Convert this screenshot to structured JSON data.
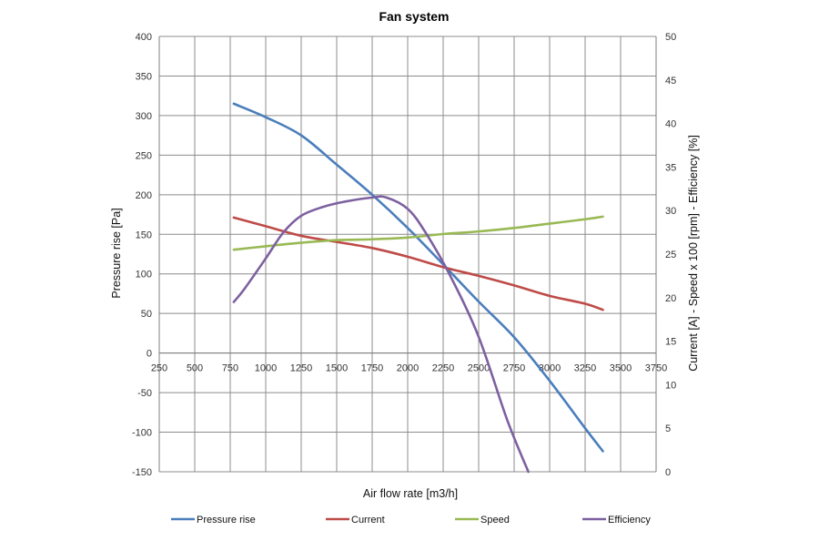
{
  "chart_data": {
    "type": "line",
    "title": "Fan system",
    "xlabel": "Air flow rate [m3/h]",
    "ylabel": "Pressure rise [Pa]",
    "y2label": "Current [A] - Speed x 100 [rpm] - Efficiency [%]",
    "xlim": [
      250,
      3750
    ],
    "ylim": [
      -150,
      400
    ],
    "y2lim": [
      0,
      50
    ],
    "xticks": [
      250,
      500,
      750,
      1000,
      1250,
      1500,
      1750,
      2000,
      2250,
      2500,
      2750,
      3000,
      3250,
      3500,
      3750
    ],
    "yticks": [
      -150,
      -100,
      -50,
      0,
      50,
      100,
      150,
      200,
      250,
      300,
      350,
      400
    ],
    "y2ticks": [
      0,
      5,
      10,
      15,
      20,
      25,
      30,
      35,
      40,
      45,
      50
    ],
    "grid": true,
    "legend_position": "bottom",
    "series": [
      {
        "name": "Pressure rise",
        "axis": "left",
        "color": "#4a7ebb",
        "x": [
          775,
          1000,
          1250,
          1500,
          1750,
          2000,
          2250,
          2500,
          2750,
          3000,
          3250,
          3375
        ],
        "y": [
          315,
          298,
          275,
          238,
          200,
          158,
          112,
          65,
          20,
          -35,
          -95,
          -124
        ]
      },
      {
        "name": "Current",
        "axis": "right",
        "color": "#be4b48",
        "x": [
          775,
          1000,
          1250,
          1500,
          1750,
          2000,
          2250,
          2500,
          2750,
          3000,
          3250,
          3375
        ],
        "y": [
          29.2,
          28.2,
          27.1,
          26.4,
          25.7,
          24.7,
          23.5,
          22.5,
          21.4,
          20.2,
          19.3,
          18.6
        ]
      },
      {
        "name": "Speed",
        "axis": "right",
        "color": "#98b954",
        "x": [
          775,
          1000,
          1250,
          1500,
          1750,
          2000,
          2250,
          2500,
          2750,
          3000,
          3250,
          3375
        ],
        "y": [
          25.5,
          25.9,
          26.3,
          26.6,
          26.7,
          26.9,
          27.3,
          27.6,
          28.0,
          28.5,
          29.0,
          29.3
        ]
      },
      {
        "name": "Efficiency",
        "axis": "right",
        "color": "#7d60a0",
        "x": [
          775,
          850,
          1000,
          1125,
          1250,
          1400,
          1550,
          1750,
          1850,
          2000,
          2125,
          2300,
          2500,
          2700,
          2850
        ],
        "y": [
          19.5,
          21.0,
          24.5,
          27.5,
          29.4,
          30.4,
          31.0,
          31.5,
          31.5,
          30.2,
          27.5,
          22.5,
          15.5,
          6.0,
          0
        ]
      }
    ]
  }
}
